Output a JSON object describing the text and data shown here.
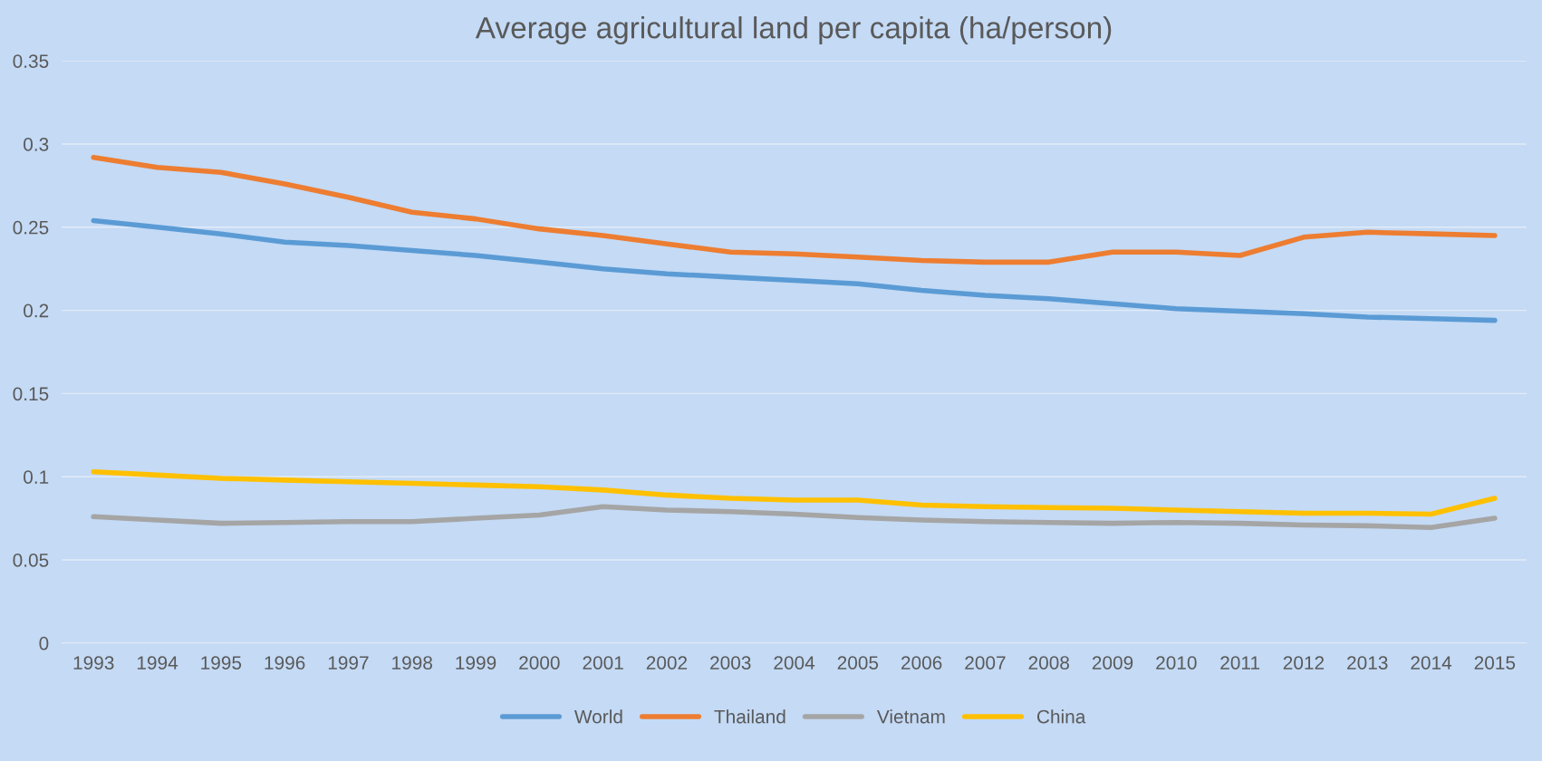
{
  "chart_data": {
    "type": "line",
    "title": "Average agricultural land per capita (ha/person)",
    "categories": [
      "1993",
      "1994",
      "1995",
      "1996",
      "1997",
      "1998",
      "1999",
      "2000",
      "2001",
      "2002",
      "2003",
      "2004",
      "2005",
      "2006",
      "2007",
      "2008",
      "2009",
      "2010",
      "2011",
      "2012",
      "2013",
      "2014",
      "2015"
    ],
    "series": [
      {
        "name": "World",
        "color": "#5b9bd5",
        "values": [
          0.254,
          0.25,
          0.246,
          0.241,
          0.239,
          0.236,
          0.233,
          0.229,
          0.225,
          0.222,
          0.22,
          0.218,
          0.216,
          0.212,
          0.209,
          0.207,
          0.204,
          0.201,
          0.1995,
          0.198,
          0.196,
          0.195,
          0.194
        ]
      },
      {
        "name": "Thailand",
        "color": "#ed7d31",
        "values": [
          0.292,
          0.286,
          0.283,
          0.276,
          0.268,
          0.259,
          0.255,
          0.249,
          0.245,
          0.24,
          0.235,
          0.234,
          0.232,
          0.23,
          0.229,
          0.229,
          0.235,
          0.235,
          0.233,
          0.244,
          0.247,
          0.246,
          0.245
        ]
      },
      {
        "name": "Vietnam",
        "color": "#a5a5a5",
        "values": [
          0.076,
          0.074,
          0.072,
          0.0725,
          0.073,
          0.073,
          0.075,
          0.077,
          0.082,
          0.08,
          0.079,
          0.0775,
          0.0755,
          0.074,
          0.073,
          0.0725,
          0.072,
          0.0725,
          0.072,
          0.071,
          0.0705,
          0.0695,
          0.075
        ]
      },
      {
        "name": "China",
        "color": "#ffc000",
        "values": [
          0.103,
          0.101,
          0.099,
          0.098,
          0.097,
          0.096,
          0.095,
          0.094,
          0.092,
          0.089,
          0.087,
          0.086,
          0.086,
          0.083,
          0.082,
          0.0815,
          0.081,
          0.08,
          0.079,
          0.078,
          0.078,
          0.0775,
          0.087
        ]
      }
    ],
    "ylim": [
      0,
      0.35
    ],
    "yticks": [
      0,
      0.05,
      0.1,
      0.15,
      0.2,
      0.25,
      0.3,
      0.35
    ],
    "grid": "y",
    "legend": "bottom",
    "marker": "none",
    "line_style": "solid"
  }
}
